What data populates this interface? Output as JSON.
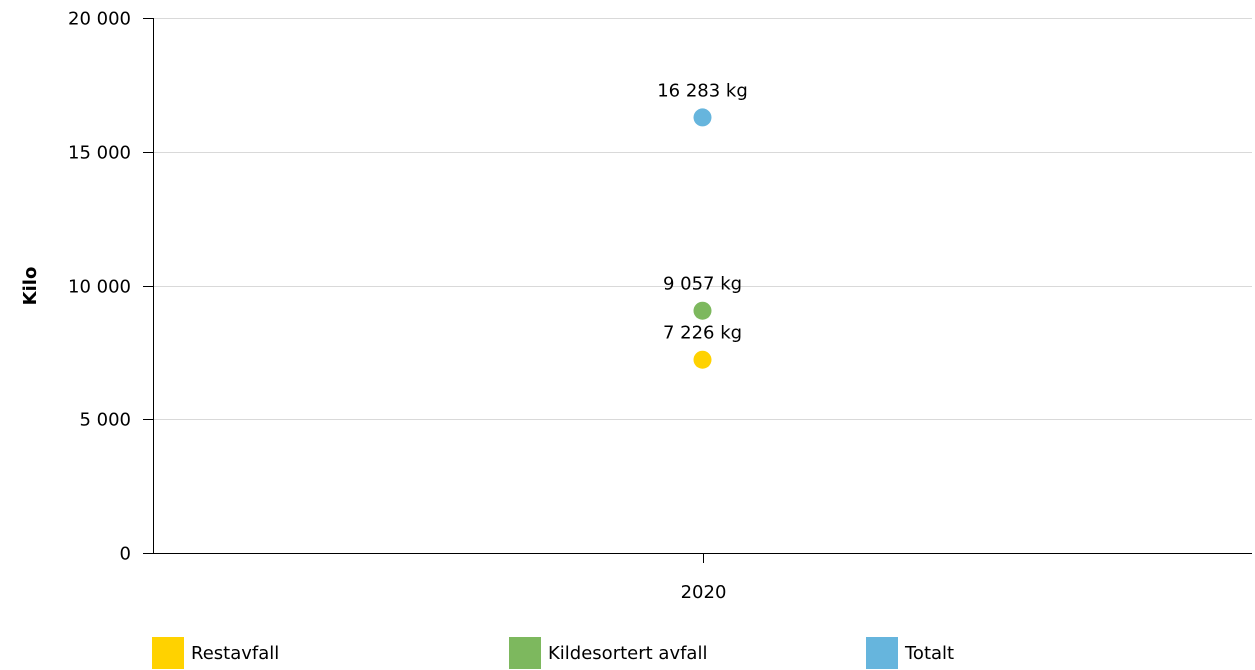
{
  "chart_data": {
    "type": "scatter",
    "ylabel": "Kilo",
    "ylim": [
      0,
      20000
    ],
    "y_ticks": [
      {
        "value": 0,
        "label": "0"
      },
      {
        "value": 5000,
        "label": "5 000"
      },
      {
        "value": 10000,
        "label": "10 000"
      },
      {
        "value": 15000,
        "label": "15 000"
      },
      {
        "value": 20000,
        "label": "20 000"
      }
    ],
    "categories": [
      "2020"
    ],
    "grid": "horizontal",
    "legend_position": "bottom",
    "series": [
      {
        "name": "Restavfall",
        "color": "#FFD200",
        "values": [
          7226
        ],
        "labels": [
          "7 226 kg"
        ]
      },
      {
        "name": "Kildesortert avfall",
        "color": "#7DB85E",
        "values": [
          9057
        ],
        "labels": [
          "9 057 kg"
        ]
      },
      {
        "name": "Totalt",
        "color": "#66B5DD",
        "values": [
          16283
        ],
        "labels": [
          "16 283 kg"
        ]
      }
    ]
  }
}
